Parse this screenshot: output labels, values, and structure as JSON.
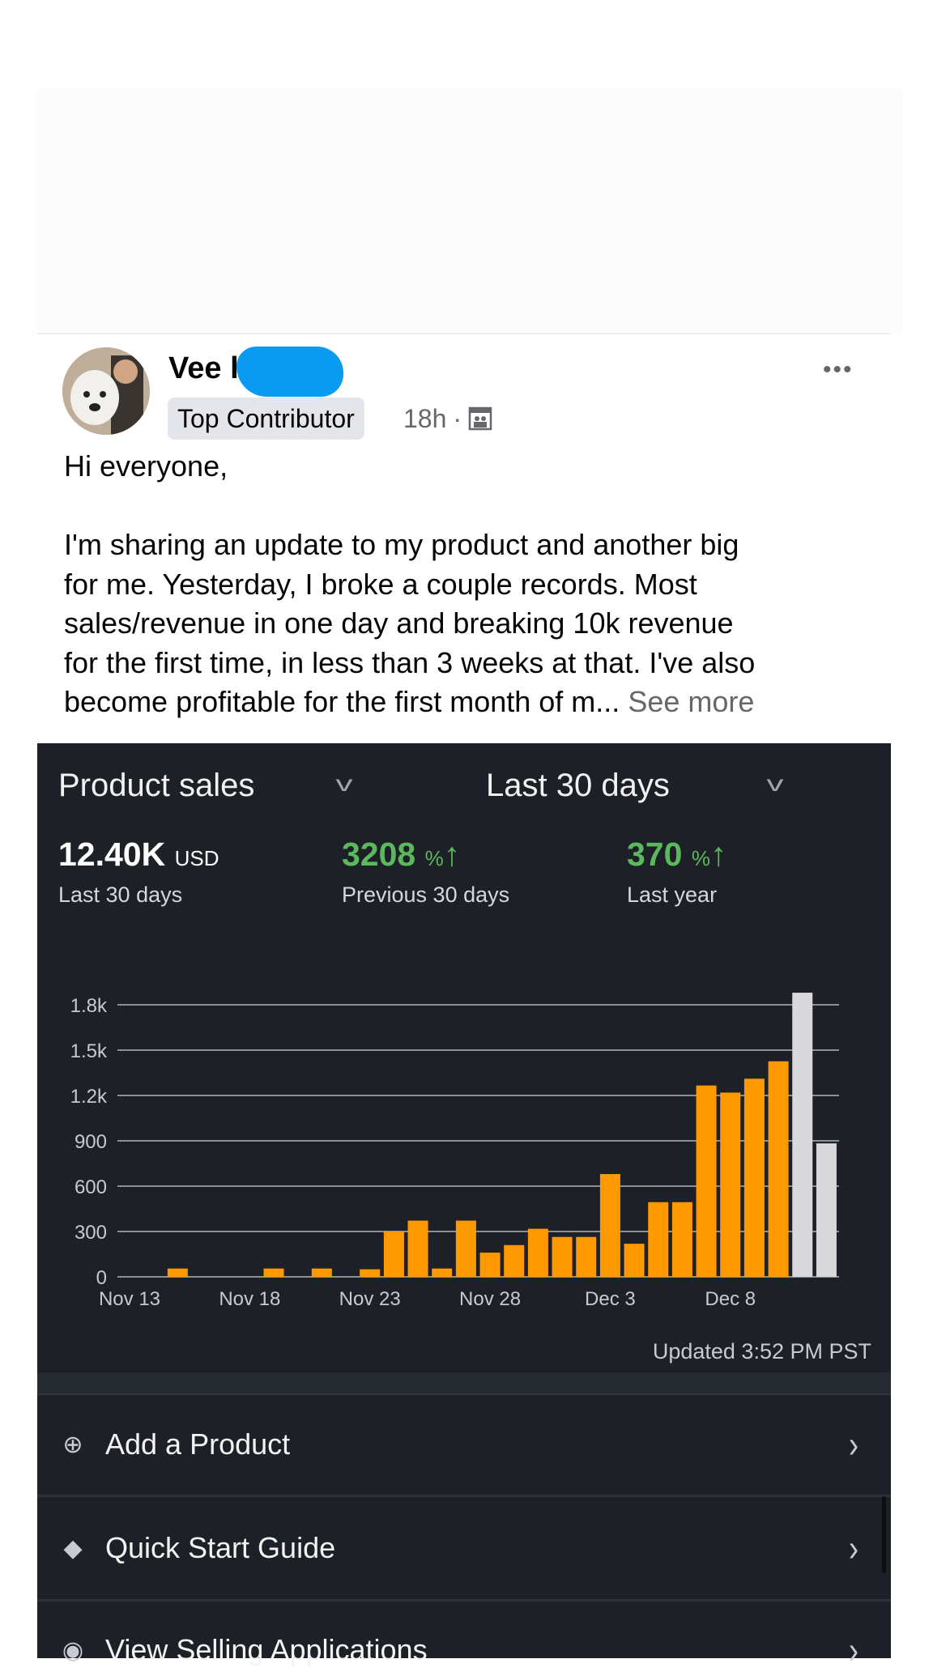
{
  "post": {
    "author": "Vee l",
    "badge": "Top Contributor",
    "time": "18h",
    "separator": "·",
    "audience_icon": "group-icon",
    "more_icon": "•••",
    "body_lines": [
      "Hi everyone,",
      "",
      "I'm sharing an update to my product and another big",
      "for me. Yesterday, I broke a couple records. Most",
      "sales/revenue in one day and breaking 10k revenue",
      "for the first time, in less than 3 weeks at that. I've also",
      "become profitable for the first month of m..."
    ],
    "see_more": "See more"
  },
  "panel": {
    "metric_select": "Product sales",
    "range_select": "Last 30 days",
    "stats": [
      {
        "value": "12.40K",
        "unit": "USD",
        "label": "Last 30 days"
      },
      {
        "value": "3208",
        "unit": "%",
        "arrow": "↑",
        "label": "Previous 30 days"
      },
      {
        "value": "370",
        "unit": "%",
        "arrow": "↑",
        "label": "Last year"
      }
    ],
    "updated": "Updated 3:52 PM PST",
    "menu": [
      {
        "label": "Add a Product",
        "icon": "tag-add-icon"
      },
      {
        "label": "Quick Start Guide",
        "icon": "graduation-cap-icon"
      },
      {
        "label": "View Selling Applications",
        "icon": "eye-icon"
      }
    ]
  },
  "chart_data": {
    "type": "bar",
    "categories": [
      "Nov 13",
      "Nov 14",
      "Nov 15",
      "Nov 16",
      "Nov 17",
      "Nov 18",
      "Nov 19",
      "Nov 20",
      "Nov 21",
      "Nov 22",
      "Nov 23",
      "Nov 24",
      "Nov 25",
      "Nov 26",
      "Nov 27",
      "Nov 28",
      "Nov 29",
      "Nov 30",
      "Dec 1",
      "Dec 2",
      "Dec 3",
      "Dec 4",
      "Dec 5",
      "Dec 6",
      "Dec 7",
      "Dec 8",
      "Dec 9",
      "Dec 10",
      "Dec 11",
      "Dec 12"
    ],
    "values": [
      0,
      0,
      55,
      0,
      0,
      0,
      55,
      0,
      55,
      0,
      50,
      300,
      372,
      55,
      372,
      160,
      210,
      318,
      264,
      264,
      680,
      219,
      494,
      494,
      1266,
      1219,
      1311,
      1426,
      1880,
      883
    ],
    "bar_colors": [
      "#ff9900",
      "#ff9900",
      "#ff9900",
      "#ff9900",
      "#ff9900",
      "#ff9900",
      "#ff9900",
      "#ff9900",
      "#ff9900",
      "#ff9900",
      "#ff9900",
      "#ff9900",
      "#ff9900",
      "#ff9900",
      "#ff9900",
      "#ff9900",
      "#ff9900",
      "#ff9900",
      "#ff9900",
      "#ff9900",
      "#ff9900",
      "#ff9900",
      "#ff9900",
      "#ff9900",
      "#ff9900",
      "#ff9900",
      "#ff9900",
      "#ff9900",
      "#d9d9dc",
      "#d9d9dc"
    ],
    "x_tick_labels": [
      "Nov 13",
      "Nov 18",
      "Nov 23",
      "Nov 28",
      "Dec 3",
      "Dec 8"
    ],
    "y_tick_labels": [
      "0",
      "300",
      "600",
      "900",
      "1.2k",
      "1.5k",
      "1.8k"
    ],
    "y_ticks": [
      0,
      300,
      600,
      900,
      1200,
      1500,
      1800
    ],
    "ylim": [
      0,
      1800
    ],
    "grid": true,
    "title": "",
    "xlabel": "",
    "ylabel": ""
  },
  "colors": {
    "panel_bg": "#1d2027",
    "accent_bar": "#ff9900",
    "latest_bar": "#d9d9dc",
    "positive": "#5cb85c"
  }
}
